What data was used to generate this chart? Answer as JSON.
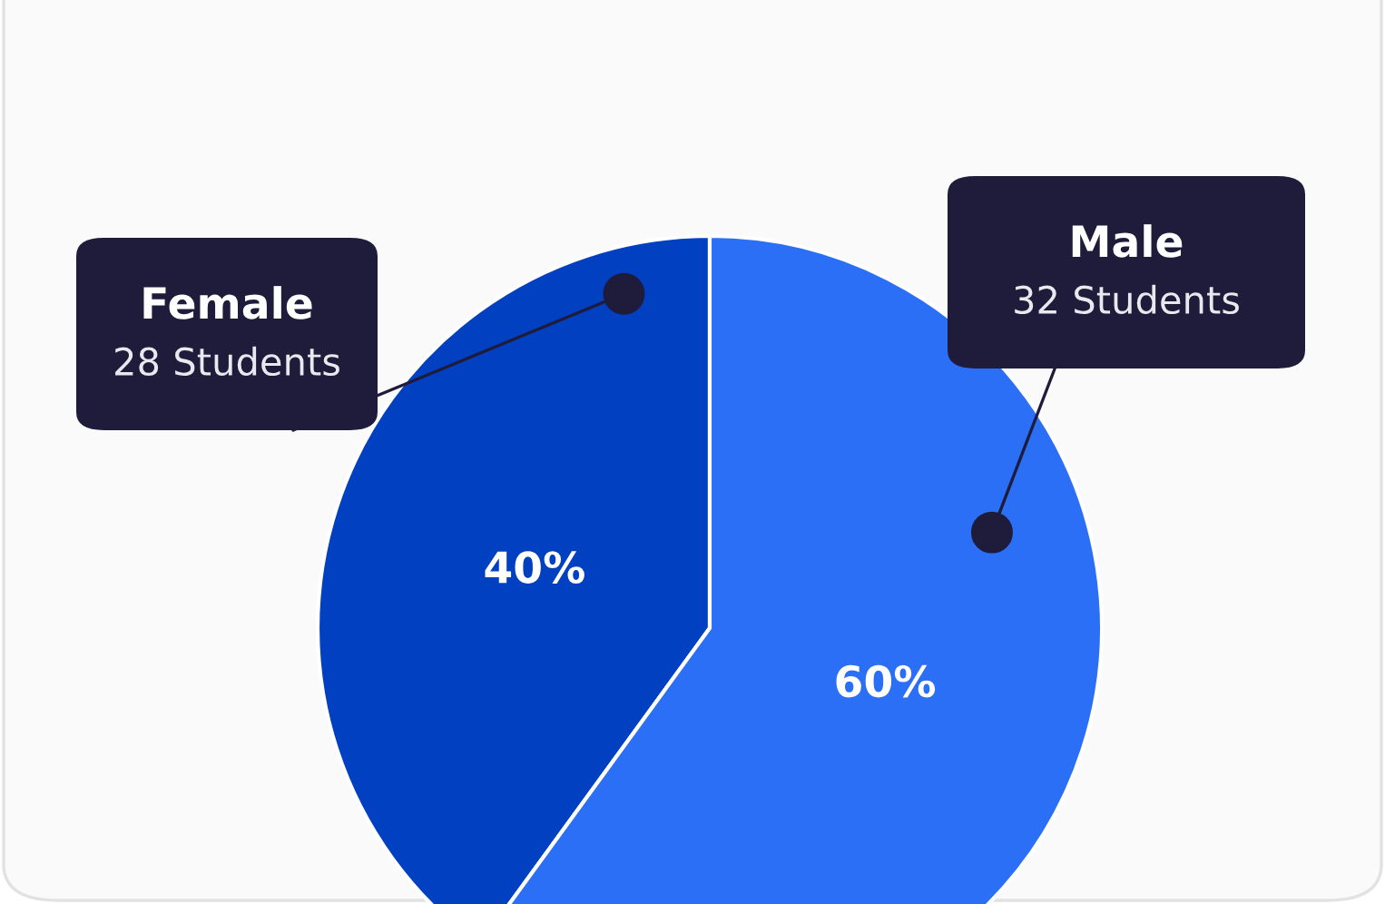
{
  "chart_data": {
    "type": "pie",
    "categories": [
      "Female",
      "Male"
    ],
    "values": [
      40,
      60
    ],
    "colors": [
      "#0040c1",
      "#2a6ff6"
    ],
    "value_labels": [
      "40%",
      "60%"
    ],
    "annotations": [
      "28 Students",
      "32 Students"
    ]
  }
}
